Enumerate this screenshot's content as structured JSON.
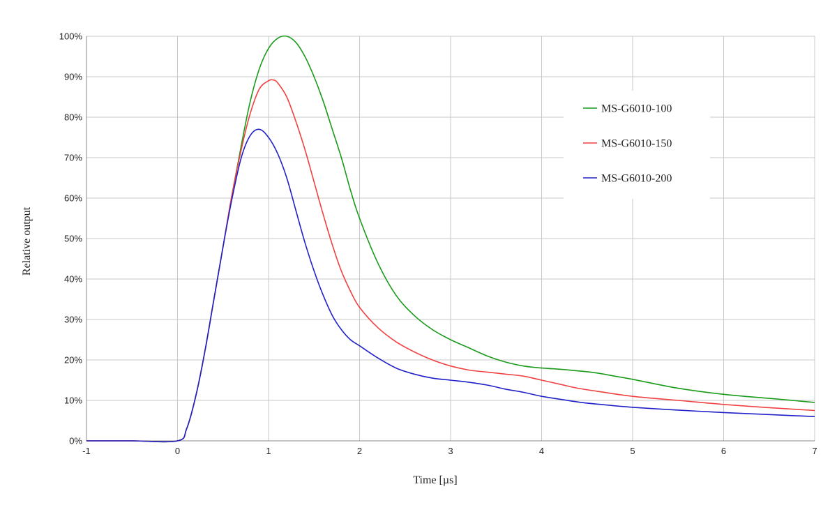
{
  "chart_data": {
    "type": "line",
    "xlabel": "Time [µs]",
    "ylabel": "Relative output",
    "xlim": [
      -1,
      7
    ],
    "ylim": [
      0,
      100
    ],
    "x_ticks": [
      "-1",
      "0",
      "1",
      "2",
      "3",
      "4",
      "5",
      "6",
      "7"
    ],
    "y_ticks": [
      "0%",
      "10%",
      "20%",
      "30%",
      "40%",
      "50%",
      "60%",
      "70%",
      "80%",
      "90%",
      "100%"
    ],
    "grid": true,
    "legend_position": "upper-right",
    "series": [
      {
        "name": "MS-G6010-100",
        "color": "#1a9a1a",
        "points": [
          [
            -1,
            0
          ],
          [
            -0.5,
            0
          ],
          [
            0,
            0
          ],
          [
            0.1,
            3
          ],
          [
            0.2,
            11
          ],
          [
            0.3,
            22
          ],
          [
            0.4,
            35
          ],
          [
            0.5,
            48
          ],
          [
            0.6,
            61
          ],
          [
            0.7,
            73
          ],
          [
            0.8,
            84
          ],
          [
            0.9,
            92
          ],
          [
            1.0,
            97
          ],
          [
            1.1,
            99.5
          ],
          [
            1.2,
            100
          ],
          [
            1.3,
            98.5
          ],
          [
            1.4,
            95
          ],
          [
            1.5,
            90
          ],
          [
            1.6,
            84
          ],
          [
            1.7,
            77
          ],
          [
            1.8,
            70
          ],
          [
            1.9,
            62
          ],
          [
            2.0,
            55
          ],
          [
            2.2,
            44
          ],
          [
            2.4,
            36
          ],
          [
            2.6,
            31
          ],
          [
            2.8,
            27.5
          ],
          [
            3.0,
            25
          ],
          [
            3.2,
            23
          ],
          [
            3.4,
            21
          ],
          [
            3.6,
            19.5
          ],
          [
            3.8,
            18.5
          ],
          [
            4.0,
            18
          ],
          [
            4.2,
            17.7
          ],
          [
            4.4,
            17.3
          ],
          [
            4.6,
            16.8
          ],
          [
            4.8,
            16
          ],
          [
            5.0,
            15.2
          ],
          [
            5.5,
            13
          ],
          [
            6.0,
            11.5
          ],
          [
            6.5,
            10.5
          ],
          [
            7.0,
            9.5
          ]
        ]
      },
      {
        "name": "MS-G6010-150",
        "color": "#f04040",
        "points": [
          [
            -1,
            0
          ],
          [
            -0.5,
            0
          ],
          [
            0,
            0
          ],
          [
            0.1,
            3
          ],
          [
            0.2,
            11
          ],
          [
            0.3,
            22
          ],
          [
            0.4,
            35
          ],
          [
            0.5,
            48
          ],
          [
            0.6,
            61
          ],
          [
            0.7,
            72
          ],
          [
            0.8,
            81
          ],
          [
            0.9,
            87
          ],
          [
            1.0,
            89
          ],
          [
            1.05,
            89.2
          ],
          [
            1.1,
            88.5
          ],
          [
            1.2,
            85
          ],
          [
            1.3,
            79
          ],
          [
            1.4,
            72
          ],
          [
            1.5,
            64
          ],
          [
            1.6,
            56
          ],
          [
            1.7,
            48.5
          ],
          [
            1.8,
            42
          ],
          [
            1.9,
            37
          ],
          [
            2.0,
            33
          ],
          [
            2.2,
            28
          ],
          [
            2.4,
            24.5
          ],
          [
            2.6,
            22
          ],
          [
            2.8,
            20
          ],
          [
            3.0,
            18.5
          ],
          [
            3.2,
            17.5
          ],
          [
            3.4,
            17
          ],
          [
            3.6,
            16.5
          ],
          [
            3.8,
            16
          ],
          [
            4.0,
            15
          ],
          [
            4.2,
            14
          ],
          [
            4.4,
            13
          ],
          [
            4.6,
            12.3
          ],
          [
            5.0,
            11
          ],
          [
            5.5,
            10
          ],
          [
            6.0,
            9
          ],
          [
            6.5,
            8.2
          ],
          [
            7.0,
            7.5
          ]
        ]
      },
      {
        "name": "MS-G6010-200",
        "color": "#2020c8",
        "points": [
          [
            -1,
            0
          ],
          [
            -0.5,
            0
          ],
          [
            0,
            0
          ],
          [
            0.1,
            3
          ],
          [
            0.2,
            11
          ],
          [
            0.3,
            22
          ],
          [
            0.4,
            35
          ],
          [
            0.5,
            48
          ],
          [
            0.6,
            60
          ],
          [
            0.7,
            70
          ],
          [
            0.8,
            75.5
          ],
          [
            0.9,
            77
          ],
          [
            1.0,
            75
          ],
          [
            1.1,
            71
          ],
          [
            1.2,
            65
          ],
          [
            1.3,
            57
          ],
          [
            1.4,
            49
          ],
          [
            1.5,
            42
          ],
          [
            1.6,
            36
          ],
          [
            1.7,
            31
          ],
          [
            1.8,
            27.5
          ],
          [
            1.9,
            25
          ],
          [
            2.0,
            23.5
          ],
          [
            2.2,
            20.5
          ],
          [
            2.4,
            18
          ],
          [
            2.6,
            16.5
          ],
          [
            2.8,
            15.5
          ],
          [
            3.0,
            15
          ],
          [
            3.2,
            14.5
          ],
          [
            3.4,
            13.8
          ],
          [
            3.6,
            12.8
          ],
          [
            3.8,
            12
          ],
          [
            4.0,
            11
          ],
          [
            4.2,
            10.3
          ],
          [
            4.4,
            9.6
          ],
          [
            4.6,
            9.1
          ],
          [
            5.0,
            8.3
          ],
          [
            5.5,
            7.6
          ],
          [
            6.0,
            7
          ],
          [
            6.5,
            6.5
          ],
          [
            7.0,
            6
          ]
        ]
      }
    ]
  }
}
